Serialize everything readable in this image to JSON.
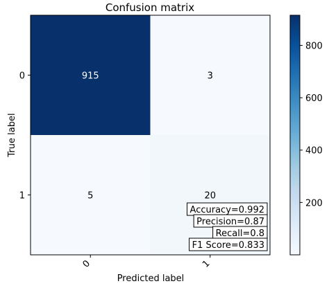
{
  "chart_data": {
    "type": "heatmap",
    "title": "Confusion matrix",
    "xlabel": "Predicted label",
    "ylabel": "True label",
    "x_categories": [
      "0",
      "1"
    ],
    "y_categories": [
      "0",
      "1"
    ],
    "values": [
      [
        915,
        3
      ],
      [
        5,
        20
      ]
    ],
    "colormap": "Blues",
    "color_low": "#f7fbff",
    "color_high": "#08306b",
    "colorbar_range": [
      0,
      915
    ],
    "colorbar_ticks": [
      200,
      400,
      600,
      800
    ],
    "metrics": [
      "Accuracy=0.992",
      "Precision=0.87",
      "Recall=0.8",
      "F1 Score=0.833"
    ]
  }
}
